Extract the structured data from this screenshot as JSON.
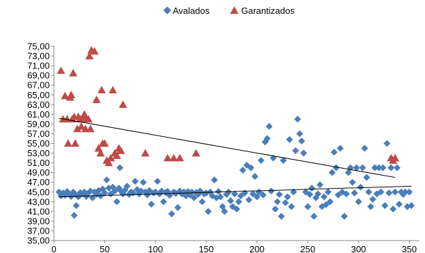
{
  "chart_data": {
    "type": "scatter",
    "title": "",
    "xlabel": "",
    "ylabel": "",
    "xlim": [
      0,
      360
    ],
    "ylim": [
      35,
      75
    ],
    "x_ticks": [
      0,
      50,
      100,
      150,
      200,
      250,
      300,
      350
    ],
    "x_tick_labels": [
      "0",
      "50",
      "100",
      "150",
      "200",
      "250",
      "300",
      "350"
    ],
    "y_ticks": [
      35,
      37,
      39,
      41,
      43,
      45,
      47,
      49,
      51,
      53,
      55,
      57,
      59,
      61,
      63,
      65,
      67,
      69,
      71,
      73,
      75
    ],
    "y_tick_labels": [
      "35,00",
      "37,00",
      "39,00",
      "41,00",
      "43,00",
      "45,00",
      "47,00",
      "49,00",
      "51,00",
      "53,00",
      "55,00",
      "57,00",
      "59,00",
      "61,00",
      "63,00",
      "65,00",
      "67,00",
      "69,00",
      "71,00",
      "73,00",
      "75,00"
    ],
    "grid": false,
    "legend_position": "top-center",
    "series": [
      {
        "name": "Avalados",
        "color": "#4a7ebb",
        "marker": "diamond",
        "points": [
          [
            5,
            45.0
          ],
          [
            7,
            44.2
          ],
          [
            9,
            44.8
          ],
          [
            11,
            44.3
          ],
          [
            13,
            45.1
          ],
          [
            15,
            44.6
          ],
          [
            17,
            44.1
          ],
          [
            19,
            45.0
          ],
          [
            20,
            40.2
          ],
          [
            21,
            44.5
          ],
          [
            22,
            42.2
          ],
          [
            24,
            44.0
          ],
          [
            26,
            44.9
          ],
          [
            28,
            44.6
          ],
          [
            30,
            45.0
          ],
          [
            32,
            44.1
          ],
          [
            34,
            44.8
          ],
          [
            36,
            45.2
          ],
          [
            38,
            43.8
          ],
          [
            40,
            45.0
          ],
          [
            42,
            44.5
          ],
          [
            44,
            45.3
          ],
          [
            46,
            44.2
          ],
          [
            48,
            45.6
          ],
          [
            50,
            44.8
          ],
          [
            52,
            47.5
          ],
          [
            54,
            45.8
          ],
          [
            56,
            44.6
          ],
          [
            58,
            46.0
          ],
          [
            60,
            45.2
          ],
          [
            62,
            43.0
          ],
          [
            64,
            45.8
          ],
          [
            65,
            50.0
          ],
          [
            66,
            45.2
          ],
          [
            68,
            44.6
          ],
          [
            70,
            45.4
          ],
          [
            72,
            46.2
          ],
          [
            74,
            44.5
          ],
          [
            76,
            45.0
          ],
          [
            78,
            44.8
          ],
          [
            80,
            47.2
          ],
          [
            82,
            45.5
          ],
          [
            84,
            44.6
          ],
          [
            86,
            45.2
          ],
          [
            88,
            47.0
          ],
          [
            90,
            45.0
          ],
          [
            92,
            44.4
          ],
          [
            94,
            45.3
          ],
          [
            96,
            42.5
          ],
          [
            98,
            44.8
          ],
          [
            100,
            45.0
          ],
          [
            102,
            47.2
          ],
          [
            104,
            44.6
          ],
          [
            106,
            45.2
          ],
          [
            108,
            43.0
          ],
          [
            110,
            44.9
          ],
          [
            112,
            45.1
          ],
          [
            114,
            44.3
          ],
          [
            116,
            40.5
          ],
          [
            118,
            45.0
          ],
          [
            120,
            44.7
          ],
          [
            122,
            41.8
          ],
          [
            124,
            45.2
          ],
          [
            126,
            44.6
          ],
          [
            128,
            45.0
          ],
          [
            130,
            44.2
          ],
          [
            132,
            45.1
          ],
          [
            134,
            44.4
          ],
          [
            136,
            45.0
          ],
          [
            138,
            43.8
          ],
          [
            140,
            44.9
          ],
          [
            142,
            44.5
          ],
          [
            144,
            45.2
          ],
          [
            146,
            43.0
          ],
          [
            148,
            44.6
          ],
          [
            150,
            44.8
          ],
          [
            152,
            41.0
          ],
          [
            154,
            45.0
          ],
          [
            156,
            44.2
          ],
          [
            158,
            47.5
          ],
          [
            160,
            43.8
          ],
          [
            162,
            45.1
          ],
          [
            164,
            44.0
          ],
          [
            166,
            42.0
          ],
          [
            168,
            41.0
          ],
          [
            170,
            44.5
          ],
          [
            172,
            45.0
          ],
          [
            174,
            43.2
          ],
          [
            176,
            42.0
          ],
          [
            178,
            44.6
          ],
          [
            180,
            41.5
          ],
          [
            182,
            43.0
          ],
          [
            184,
            44.2
          ],
          [
            186,
            49.5
          ],
          [
            188,
            44.8
          ],
          [
            190,
            50.5
          ],
          [
            192,
            43.4
          ],
          [
            194,
            50.0
          ],
          [
            196,
            44.6
          ],
          [
            198,
            48.2
          ],
          [
            200,
            44.0
          ],
          [
            202,
            45.0
          ],
          [
            204,
            51.5
          ],
          [
            206,
            44.4
          ],
          [
            208,
            55.3
          ],
          [
            210,
            56.0
          ],
          [
            212,
            58.5
          ],
          [
            214,
            45.2
          ],
          [
            216,
            52.0
          ],
          [
            218,
            41.5
          ],
          [
            220,
            43.0
          ],
          [
            222,
            44.5
          ],
          [
            224,
            40.0
          ],
          [
            226,
            51.5
          ],
          [
            228,
            42.8
          ],
          [
            230,
            44.0
          ],
          [
            232,
            55.8
          ],
          [
            234,
            42.0
          ],
          [
            236,
            45.0
          ],
          [
            238,
            53.5
          ],
          [
            240,
            60.0
          ],
          [
            242,
            57.0
          ],
          [
            244,
            55.5
          ],
          [
            246,
            53.0
          ],
          [
            248,
            45.0
          ],
          [
            250,
            42.0
          ],
          [
            252,
            44.5
          ],
          [
            254,
            45.8
          ],
          [
            256,
            40.0
          ],
          [
            258,
            43.8
          ],
          [
            260,
            44.6
          ],
          [
            262,
            46.5
          ],
          [
            264,
            42.0
          ],
          [
            266,
            44.0
          ],
          [
            268,
            42.4
          ],
          [
            270,
            45.0
          ],
          [
            272,
            43.0
          ],
          [
            274,
            49.0
          ],
          [
            276,
            53.2
          ],
          [
            278,
            50.0
          ],
          [
            280,
            44.4
          ],
          [
            282,
            54.0
          ],
          [
            284,
            45.0
          ],
          [
            286,
            40.0
          ],
          [
            288,
            44.6
          ],
          [
            290,
            49.0
          ],
          [
            292,
            50.0
          ],
          [
            294,
            47.0
          ],
          [
            296,
            44.8
          ],
          [
            298,
            50.0
          ],
          [
            300,
            43.0
          ],
          [
            302,
            46.0
          ],
          [
            304,
            50.0
          ],
          [
            306,
            54.0
          ],
          [
            308,
            48.0
          ],
          [
            310,
            45.0
          ],
          [
            312,
            42.0
          ],
          [
            314,
            43.5
          ],
          [
            316,
            50.0
          ],
          [
            318,
            44.6
          ],
          [
            320,
            50.0
          ],
          [
            322,
            45.0
          ],
          [
            324,
            50.0
          ],
          [
            326,
            42.2
          ],
          [
            328,
            55.0
          ],
          [
            330,
            44.8
          ],
          [
            332,
            50.0
          ],
          [
            334,
            41.5
          ],
          [
            336,
            45.0
          ],
          [
            338,
            50.0
          ],
          [
            340,
            42.5
          ],
          [
            342,
            45.0
          ],
          [
            344,
            44.5
          ],
          [
            346,
            45.0
          ],
          [
            348,
            42.0
          ],
          [
            350,
            45.0
          ],
          [
            352,
            42.2
          ]
        ]
      },
      {
        "name": "Garantizados",
        "color": "#be4b48",
        "marker": "triangle",
        "points": [
          [
            7,
            70.0
          ],
          [
            9,
            60.0
          ],
          [
            11,
            64.8
          ],
          [
            13,
            60.0
          ],
          [
            14,
            55.0
          ],
          [
            16,
            64.5
          ],
          [
            17,
            65.0
          ],
          [
            18,
            60.0
          ],
          [
            19,
            69.5
          ],
          [
            20,
            60.5
          ],
          [
            21,
            55.0
          ],
          [
            23,
            58.0
          ],
          [
            24,
            60.5
          ],
          [
            26,
            60.0
          ],
          [
            27,
            58.5
          ],
          [
            29,
            60.5
          ],
          [
            30,
            61.0
          ],
          [
            31,
            58.0
          ],
          [
            32,
            60.0
          ],
          [
            34,
            60.0
          ],
          [
            35,
            73.0
          ],
          [
            36,
            58.0
          ],
          [
            37,
            74.2
          ],
          [
            40,
            74.0
          ],
          [
            42,
            64.0
          ],
          [
            44,
            54.0
          ],
          [
            46,
            53.0
          ],
          [
            47,
            66.0
          ],
          [
            48,
            55.0
          ],
          [
            50,
            55.0
          ],
          [
            52,
            51.5
          ],
          [
            54,
            51.0
          ],
          [
            56,
            52.0
          ],
          [
            58,
            66.0
          ],
          [
            60,
            53.0
          ],
          [
            62,
            52.5
          ],
          [
            64,
            54.0
          ],
          [
            66,
            53.5
          ],
          [
            68,
            63.0
          ],
          [
            90,
            53.0
          ],
          [
            112,
            52.0
          ],
          [
            118,
            52.0
          ],
          [
            124,
            52.0
          ],
          [
            140,
            53.0
          ],
          [
            332,
            52.0
          ],
          [
            334,
            51.5
          ],
          [
            336,
            52.0
          ]
        ]
      }
    ],
    "trendlines": [
      {
        "series": "Garantizados",
        "x": [
          5,
          336
        ],
        "y": [
          60.2,
          48.0
        ]
      },
      {
        "series": "Avalados",
        "x": [
          5,
          352
        ],
        "y": [
          44.0,
          46.2
        ]
      }
    ]
  }
}
